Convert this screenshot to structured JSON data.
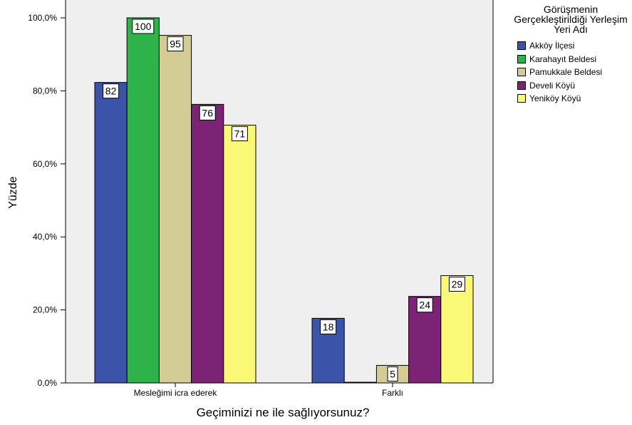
{
  "chart_data": {
    "type": "bar",
    "xlabel": "Geçiminizi ne ile sağlıyorsunuz?",
    "ylabel": "Yüzde",
    "categories": [
      "Mesleğimi icra ederek",
      "Farklı"
    ],
    "y_ticks": [
      "0,0%",
      "20,0%",
      "40,0%",
      "60,0%",
      "80,0%",
      "100,0%"
    ],
    "ylim": [
      0,
      100
    ],
    "grid": false,
    "legend_placement": "top-right",
    "legend_title": "Görüşmenin Gerçekleştirildiği Yerleşim Yeri Adı",
    "series": [
      {
        "name": "Akköy İlçesi",
        "color": "#3b54a9",
        "values": [
          82.3,
          17.7
        ],
        "labels": [
          "82",
          "18"
        ]
      },
      {
        "name": "Karahayıt Beldesi",
        "color": "#2db34a",
        "values": [
          100,
          0
        ],
        "labels": [
          "100",
          ""
        ]
      },
      {
        "name": "Pamukkale Beldesi",
        "color": "#d3cc94",
        "values": [
          95.2,
          4.8
        ],
        "labels": [
          "95",
          "5"
        ]
      },
      {
        "name": "Develi Köyü",
        "color": "#7d2375",
        "values": [
          76.3,
          23.7
        ],
        "labels": [
          "76",
          "24"
        ]
      },
      {
        "name": "Yeniköy Köyü",
        "color": "#fbf777",
        "values": [
          70.6,
          29.4
        ],
        "labels": [
          "71",
          "29"
        ]
      }
    ],
    "plot_background": "#efefef"
  }
}
